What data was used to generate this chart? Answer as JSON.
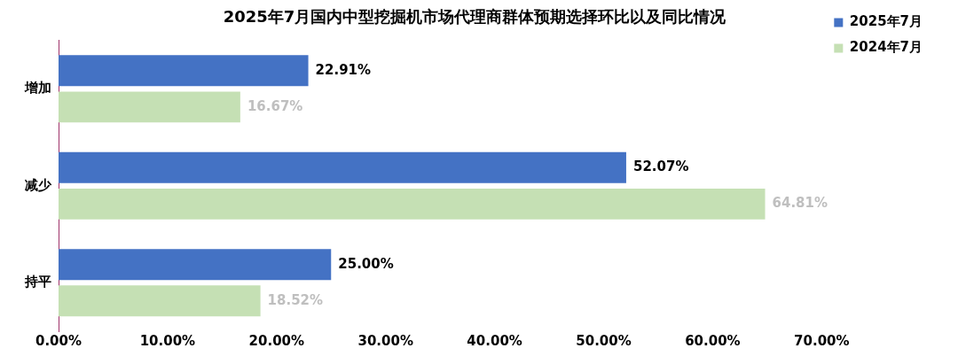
{
  "chart_data": {
    "type": "bar",
    "orientation": "horizontal",
    "title": "2025年7月国内中型挖掘机市场代理商群体预期选择环比以及同比情况",
    "categories": [
      "增加",
      "减少",
      "持平"
    ],
    "series": [
      {
        "name": "2025年7月",
        "color": "#4472c4",
        "values": [
          22.91,
          52.07,
          25.0
        ],
        "value_labels": [
          "22.91%",
          "52.07%",
          "25.00%"
        ]
      },
      {
        "name": "2024年7月",
        "color": "#c5e0b4",
        "values": [
          16.67,
          64.81,
          18.52
        ],
        "value_labels": [
          "16.67%",
          "64.81%",
          "18.52%"
        ]
      }
    ],
    "xlim": [
      0,
      70
    ],
    "xticks": [
      {
        "value": 0,
        "label": "0.00%"
      },
      {
        "value": 10,
        "label": "10.00%"
      },
      {
        "value": 20,
        "label": "20.00%"
      },
      {
        "value": 30,
        "label": "30.00%"
      },
      {
        "value": 40,
        "label": "40.00%"
      },
      {
        "value": 50,
        "label": "50.00%"
      },
      {
        "value": 60,
        "label": "60.00%"
      },
      {
        "value": 70,
        "label": "70.00%"
      }
    ],
    "grid": false,
    "legend": "top right"
  }
}
